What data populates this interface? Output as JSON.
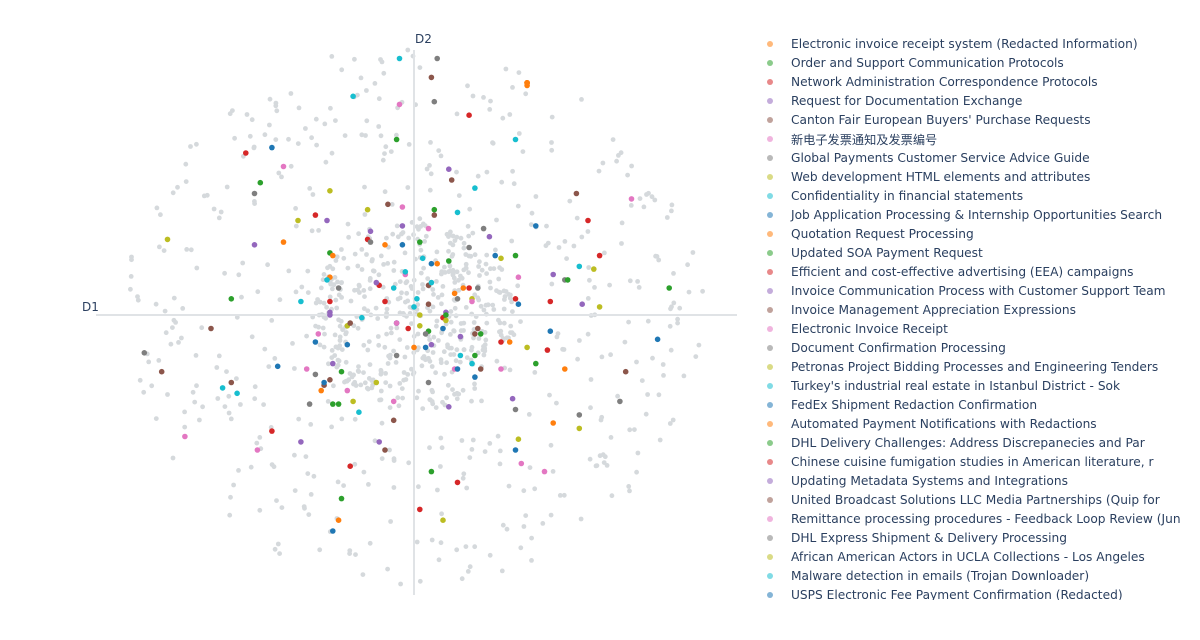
{
  "chart_data": {
    "type": "scatter",
    "xlabel": "D1",
    "ylabel": "D2",
    "xlim": [
      -1,
      1
    ],
    "ylim": [
      -1,
      1
    ],
    "grid": false,
    "zero_lines": true,
    "background_color": "#d5d9dc",
    "legend_position": "right",
    "series": [
      {
        "name": "Electronic invoice receipt system (Redacted Information)",
        "color": "#ff7f0e",
        "points": [
          [
            0.39,
            0.86
          ],
          [
            0.39,
            0.86
          ],
          [
            0.39,
            0.86
          ],
          [
            0.39,
            0.85
          ],
          [
            0.39,
            0.86
          ],
          [
            -0.45,
            0.27
          ],
          [
            0.08,
            0.19
          ]
        ]
      },
      {
        "name": "Order and Support Communication Protocols",
        "color": "#2ca02c",
        "points": [
          [
            -0.29,
            0.23
          ],
          [
            0.05,
            -0.06
          ],
          [
            -0.25,
            -0.21
          ],
          [
            0.07,
            0.39
          ],
          [
            0.35,
            0.22
          ],
          [
            -0.63,
            0.06
          ],
          [
            0.42,
            -0.18
          ],
          [
            -0.06,
            0.65
          ]
        ]
      },
      {
        "name": "Network Administration Correspondence Protocols",
        "color": "#d62728",
        "points": [
          [
            -0.58,
            0.6
          ],
          [
            0.19,
            0.74
          ],
          [
            -0.1,
            0.05
          ],
          [
            0.64,
            0.22
          ],
          [
            0.3,
            -0.1
          ],
          [
            -0.49,
            -0.43
          ],
          [
            0.47,
            0.05
          ],
          [
            0.15,
            -0.62
          ]
        ]
      },
      {
        "name": "Request for Documentation Exchange",
        "color": "#9467bd",
        "points": [
          [
            -0.28,
            -0.18
          ],
          [
            0.11,
            0.01
          ],
          [
            -0.29,
            0.0
          ],
          [
            -0.04,
            0.33
          ],
          [
            0.12,
            -0.34
          ],
          [
            -0.55,
            0.26
          ],
          [
            0.34,
            -0.31
          ]
        ]
      },
      {
        "name": "Canton Fair European Buyers' Purchase Requests",
        "color": "#8c564b",
        "points": [
          [
            -0.09,
            0.41
          ],
          [
            0.22,
            -0.05
          ],
          [
            -0.31,
            -0.26
          ],
          [
            0.13,
            0.5
          ],
          [
            -0.1,
            -0.5
          ],
          [
            0.56,
            0.45
          ],
          [
            -0.7,
            -0.05
          ]
        ]
      },
      {
        "name": "新电子发票通知及发票编号",
        "color": "#e377c2",
        "points": [
          [
            -0.23,
            -0.28
          ],
          [
            0.14,
            -0.2
          ],
          [
            -0.03,
            0.15
          ],
          [
            0.36,
            0.14
          ],
          [
            -0.45,
            0.55
          ],
          [
            0.45,
            -0.58
          ],
          [
            -0.05,
            0.78
          ]
        ]
      },
      {
        "name": "Global Payments Customer Service Advice Guide",
        "color": "#7f7f7f",
        "points": [
          [
            0.05,
            -0.25
          ],
          [
            -0.26,
            0.1
          ],
          [
            0.19,
            0.25
          ],
          [
            -0.36,
            -0.33
          ],
          [
            0.52,
            0.13
          ],
          [
            0.07,
            0.79
          ],
          [
            -0.55,
            0.45
          ]
        ]
      },
      {
        "name": "Web development HTML elements and attributes",
        "color": "#bcbd22",
        "points": [
          [
            -0.21,
            -0.32
          ],
          [
            0.02,
            0.0
          ],
          [
            0.2,
            0.06
          ],
          [
            -0.16,
            0.39
          ],
          [
            0.36,
            -0.46
          ],
          [
            -0.85,
            0.28
          ],
          [
            0.57,
            -0.42
          ]
        ]
      },
      {
        "name": "Confidentiality in financial statements",
        "color": "#17becf",
        "points": [
          [
            -0.39,
            0.05
          ],
          [
            -0.07,
            0.1
          ],
          [
            0.01,
            0.06
          ],
          [
            0.03,
            0.21
          ],
          [
            0.15,
            0.38
          ],
          [
            -0.21,
            0.81
          ],
          [
            0.57,
            0.18
          ]
        ]
      },
      {
        "name": "Job Application Processing & Internship Opportunities Search",
        "color": "#1f77b4",
        "points": [
          [
            -0.06,
            -0.03
          ],
          [
            0.04,
            -0.12
          ],
          [
            -0.31,
            -0.25
          ],
          [
            0.21,
            -0.23
          ],
          [
            0.47,
            -0.06
          ],
          [
            -0.28,
            -0.8
          ],
          [
            0.42,
            0.33
          ]
        ]
      },
      {
        "name": "Quotation Request Processing",
        "color": "#ff7f0e",
        "points": [
          [
            0.33,
            -0.1
          ],
          [
            -0.1,
            0.26
          ],
          [
            -0.29,
            0.14
          ],
          [
            0.52,
            -0.2
          ],
          [
            0.17,
            0.1
          ]
        ]
      },
      {
        "name": "Updated SOA Payment Request",
        "color": "#2ca02c",
        "points": [
          [
            0.21,
            -0.15
          ],
          [
            0.12,
            0.2
          ],
          [
            -0.26,
            -0.33
          ],
          [
            0.53,
            0.13
          ],
          [
            -0.53,
            0.49
          ],
          [
            0.06,
            -0.58
          ]
        ]
      },
      {
        "name": "Efficient and cost-effective advertising (EEA) campaigns",
        "color": "#d62728",
        "points": [
          [
            -0.12,
            0.11
          ],
          [
            0.1,
            -0.01
          ],
          [
            -0.29,
            0.05
          ],
          [
            0.35,
            0.06
          ],
          [
            -0.22,
            -0.56
          ],
          [
            0.6,
            0.35
          ]
        ]
      },
      {
        "name": "Invoice Communication Process with Customer Support Team",
        "color": "#9467bd",
        "points": [
          [
            -0.29,
            0.01
          ],
          [
            0.06,
            -0.11
          ],
          [
            -0.15,
            0.31
          ],
          [
            0.26,
            0.29
          ],
          [
            -0.12,
            -0.47
          ],
          [
            0.48,
            0.15
          ]
        ]
      },
      {
        "name": "Invoice Management Appreciation Expressions",
        "color": "#8c564b",
        "points": [
          [
            0.05,
            0.11
          ],
          [
            0.21,
            -0.07
          ],
          [
            -0.29,
            -0.24
          ],
          [
            0.07,
            0.37
          ],
          [
            -0.63,
            -0.25
          ],
          [
            0.73,
            -0.21
          ]
        ]
      },
      {
        "name": "Electronic Invoice Receipt",
        "color": "#e377c2",
        "points": [
          [
            -0.33,
            -0.07
          ],
          [
            -0.07,
            -0.32
          ],
          [
            0.05,
            0.32
          ],
          [
            0.3,
            -0.2
          ],
          [
            -0.54,
            -0.5
          ],
          [
            0.75,
            0.43
          ]
        ]
      },
      {
        "name": "Document Confirmation Processing",
        "color": "#7f7f7f",
        "points": [
          [
            0.04,
            -0.07
          ],
          [
            0.15,
            0.06
          ],
          [
            -0.34,
            -0.22
          ],
          [
            0.24,
            0.32
          ],
          [
            0.57,
            -0.37
          ],
          [
            0.08,
            0.95
          ]
        ]
      },
      {
        "name": "Petronas Project Bidding Processes and Engineering Tenders",
        "color": "#bcbd22",
        "points": [
          [
            0.11,
            -0.02
          ],
          [
            -0.23,
            -0.04
          ],
          [
            0.39,
            -0.12
          ],
          [
            -0.4,
            0.35
          ],
          [
            0.64,
            0.03
          ]
        ]
      },
      {
        "name": "Turkey's industrial real estate in Istanbul District - Sok",
        "color": "#17becf",
        "points": [
          [
            0.0,
            0.03
          ],
          [
            -0.03,
            0.16
          ],
          [
            -0.18,
            -0.01
          ],
          [
            0.16,
            -0.15
          ],
          [
            -0.05,
            0.95
          ],
          [
            0.21,
            0.47
          ],
          [
            -0.61,
            -0.29
          ]
        ]
      },
      {
        "name": "FedEx Shipment Redaction Confirmation",
        "color": "#1f77b4",
        "points": [
          [
            0.1,
            -0.05
          ],
          [
            -0.23,
            -0.11
          ],
          [
            0.06,
            0.19
          ],
          [
            0.28,
            0.22
          ],
          [
            -0.47,
            -0.19
          ],
          [
            0.35,
            -0.5
          ]
        ]
      },
      {
        "name": "Automated Payment Notifications with Redactions",
        "color": "#ff7f0e",
        "points": [
          [
            0.0,
            -0.12
          ],
          [
            -0.32,
            -0.28
          ],
          [
            0.14,
            0.08
          ],
          [
            -0.28,
            0.22
          ],
          [
            0.48,
            -0.4
          ],
          [
            -0.26,
            -0.76
          ]
        ]
      },
      {
        "name": "DHL Delivery Challenges: Address Discrepanecies and Par",
        "color": "#2ca02c",
        "points": [
          [
            -0.28,
            -0.33
          ],
          [
            0.11,
            0.0
          ],
          [
            0.23,
            -0.07
          ],
          [
            0.02,
            0.27
          ],
          [
            -0.25,
            -0.68
          ],
          [
            0.88,
            0.1
          ]
        ]
      },
      {
        "name": "Chinese cuisine fumigation studies in American literature, r",
        "color": "#d62728",
        "points": [
          [
            0.19,
            0.1
          ],
          [
            -0.16,
            0.28
          ],
          [
            -0.02,
            -0.05
          ],
          [
            0.46,
            -0.13
          ],
          [
            -0.34,
            0.37
          ],
          [
            0.02,
            -0.72
          ]
        ]
      },
      {
        "name": "Updating Metadata Systems and Integrations",
        "color": "#9467bd",
        "points": [
          [
            -0.13,
            0.12
          ],
          [
            0.16,
            -0.08
          ],
          [
            -0.3,
            0.35
          ],
          [
            0.12,
            0.54
          ],
          [
            -0.39,
            -0.47
          ],
          [
            0.58,
            0.04
          ]
        ]
      },
      {
        "name": "United Broadcast Solutions LLC Media Partnerships (Quip for",
        "color": "#8c564b",
        "points": [
          [
            -0.22,
            -0.03
          ],
          [
            0.05,
            0.04
          ],
          [
            0.23,
            -0.2
          ],
          [
            -0.07,
            -0.39
          ],
          [
            0.06,
            0.88
          ],
          [
            -0.87,
            -0.21
          ]
        ]
      },
      {
        "name": "Remittance processing procedures - Feedback Loop Review (Jun",
        "color": "#e377c2",
        "points": [
          [
            -0.37,
            -0.2
          ],
          [
            -0.06,
            -0.03
          ],
          [
            0.2,
            0.05
          ],
          [
            -0.04,
            0.4
          ],
          [
            0.37,
            -0.55
          ],
          [
            -0.79,
            -0.45
          ]
        ]
      },
      {
        "name": "DHL Express Shipment & Delivery Processing",
        "color": "#7f7f7f",
        "points": [
          [
            -0.06,
            -0.15
          ],
          [
            0.22,
            0.1
          ],
          [
            -0.15,
            0.27
          ],
          [
            0.35,
            -0.35
          ],
          [
            -0.93,
            -0.14
          ],
          [
            0.71,
            -0.32
          ]
        ]
      },
      {
        "name": "African American Actors in UCLA Collections - Los Angeles",
        "color": "#bcbd22",
        "points": [
          [
            0.02,
            -0.04
          ],
          [
            -0.13,
            -0.25
          ],
          [
            0.3,
            0.21
          ],
          [
            -0.29,
            0.46
          ],
          [
            0.1,
            -0.76
          ],
          [
            0.62,
            0.17
          ]
        ]
      },
      {
        "name": "Malware detection in emails (Trojan Downloader)",
        "color": "#17becf",
        "points": [
          [
            -0.3,
            0.13
          ],
          [
            0.06,
            0.12
          ],
          [
            0.2,
            -0.18
          ],
          [
            -0.19,
            -0.36
          ],
          [
            0.35,
            0.65
          ],
          [
            -0.66,
            -0.27
          ]
        ]
      },
      {
        "name": "USPS Electronic Fee Payment Confirmation (Redacted)",
        "color": "#1f77b4",
        "points": [
          [
            -0.04,
            0.26
          ],
          [
            0.15,
            -0.2
          ],
          [
            -0.34,
            -0.1
          ],
          [
            0.36,
            0.04
          ],
          [
            -0.49,
            0.62
          ],
          [
            0.84,
            -0.09
          ]
        ]
      }
    ]
  }
}
